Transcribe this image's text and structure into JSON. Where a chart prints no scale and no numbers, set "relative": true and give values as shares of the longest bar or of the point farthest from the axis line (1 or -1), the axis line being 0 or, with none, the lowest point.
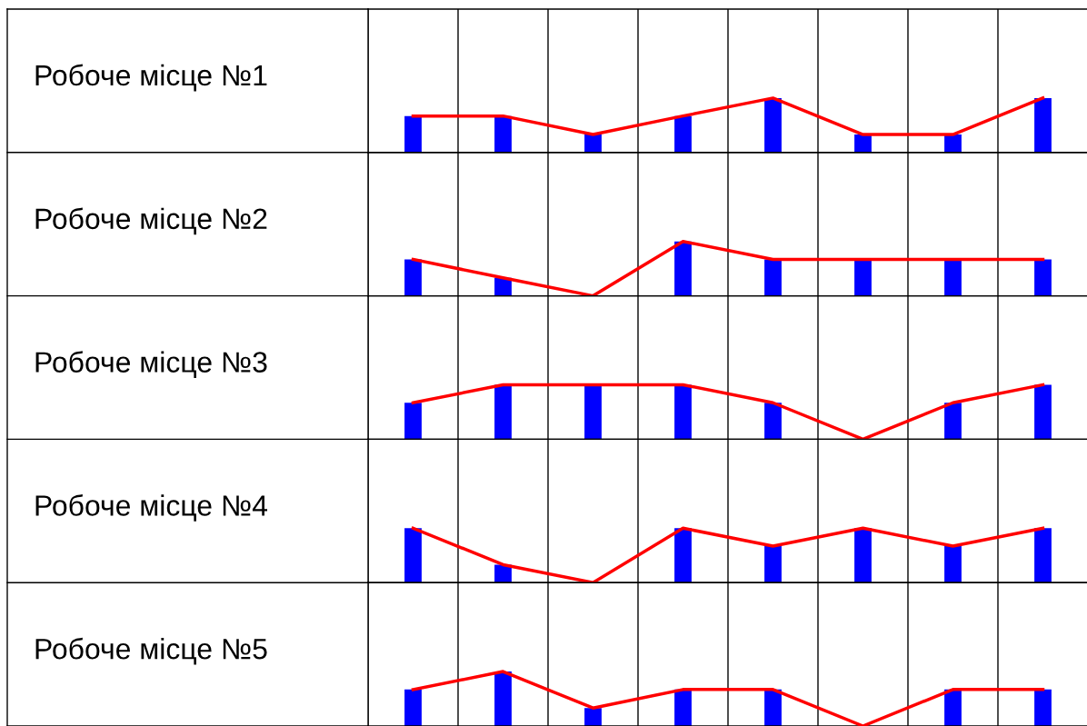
{
  "chart_data": [
    {
      "type": "bar",
      "title": "Робоче місце №1",
      "categories": [
        null,
        null,
        null,
        null,
        null,
        null,
        null,
        null
      ],
      "relative": true,
      "grid": "x",
      "color": "#0000ff",
      "values": [
        0.67,
        0.67,
        0.33,
        0.67,
        1,
        0.33,
        0.33,
        1
      ]
    },
    {
      "type": "line",
      "categories": [
        null,
        null,
        null,
        null,
        null,
        null,
        null,
        null
      ],
      "relative": true,
      "color": "#ff0000",
      "values": [
        0.67,
        0.67,
        0.33,
        0.67,
        1,
        0.33,
        0.33,
        1
      ]
    },
    {
      "type": "bar",
      "title": "Робоче місце №2",
      "categories": [
        null,
        null,
        null,
        null,
        null,
        null,
        null,
        null
      ],
      "relative": true,
      "grid": "x",
      "color": "#0000ff",
      "values": [
        0.67,
        0.33,
        0,
        1,
        0.67,
        0.67,
        0.67,
        0.67
      ]
    },
    {
      "type": "line",
      "categories": [
        null,
        null,
        null,
        null,
        null,
        null,
        null,
        null
      ],
      "relative": true,
      "color": "#ff0000",
      "values": [
        0.67,
        0.33,
        0,
        1,
        0.67,
        0.67,
        0.67,
        0.67
      ]
    },
    {
      "type": "bar",
      "title": "Робоче місце №3",
      "categories": [
        null,
        null,
        null,
        null,
        null,
        null,
        null,
        null
      ],
      "relative": true,
      "grid": "x",
      "color": "#0000ff",
      "values": [
        0.67,
        1,
        1,
        1,
        0.67,
        0,
        0.67,
        1
      ]
    },
    {
      "type": "line",
      "categories": [
        null,
        null,
        null,
        null,
        null,
        null,
        null,
        null
      ],
      "relative": true,
      "color": "#ff0000",
      "values": [
        0.67,
        1,
        1,
        1,
        0.67,
        0,
        0.67,
        1
      ]
    },
    {
      "type": "bar",
      "title": "Робоче місце №4",
      "categories": [
        null,
        null,
        null,
        null,
        null,
        null,
        null,
        null
      ],
      "relative": true,
      "grid": "x",
      "color": "#0000ff",
      "values": [
        1,
        0.33,
        0,
        1,
        0.67,
        1,
        0.67,
        1
      ]
    },
    {
      "type": "line",
      "categories": [
        null,
        null,
        null,
        null,
        null,
        null,
        null,
        null
      ],
      "relative": true,
      "color": "#ff0000",
      "values": [
        1,
        0.33,
        0,
        1,
        0.67,
        1,
        0.67,
        1
      ]
    },
    {
      "type": "bar",
      "title": "Робоче місце №5",
      "categories": [
        null,
        null,
        null,
        null,
        null,
        null,
        null,
        null
      ],
      "relative": true,
      "grid": "x",
      "color": "#0000ff",
      "values": [
        0.67,
        1,
        0.33,
        0.67,
        0.67,
        0,
        0.67,
        0.67
      ]
    },
    {
      "type": "line",
      "categories": [
        null,
        null,
        null,
        null,
        null,
        null,
        null,
        null
      ],
      "relative": true,
      "color": "#ff0000",
      "values": [
        0.67,
        1,
        0.33,
        0.67,
        0.67,
        0,
        0.67,
        0.67
      ]
    }
  ]
}
